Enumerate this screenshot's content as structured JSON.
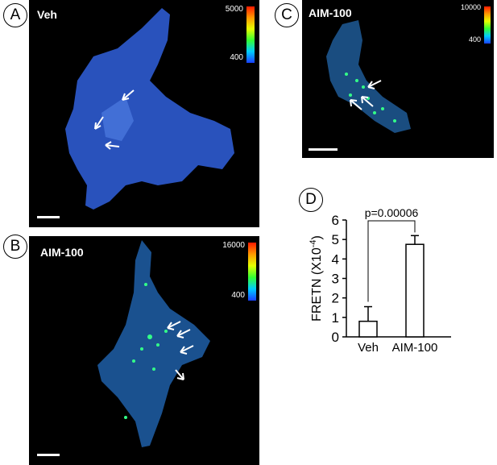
{
  "panels": {
    "a": {
      "letter": "A",
      "condition": "Veh",
      "colorbar_max": "5000",
      "colorbar_min": "400"
    },
    "b": {
      "letter": "B",
      "condition": "AIM-100",
      "colorbar_max": "16000",
      "colorbar_min": "400"
    },
    "c": {
      "letter": "C",
      "condition": "AIM-100",
      "colorbar_max": "10000",
      "colorbar_min": "400"
    },
    "d": {
      "letter": "D"
    }
  },
  "chart_data": {
    "type": "bar",
    "categories": [
      "Veh",
      "AIM-100"
    ],
    "values": [
      0.8,
      4.75
    ],
    "errors": [
      0.75,
      0.45
    ],
    "ylabel": "FRETN (X10",
    "ylabel_exp": "-4",
    "ylabel_close": ")",
    "ylim": [
      0,
      6
    ],
    "yticks": [
      "0",
      "1",
      "2",
      "3",
      "4",
      "5",
      "6"
    ],
    "annotation": "p=0.00006",
    "grid": false,
    "bar_fill": "#ffffff",
    "bar_stroke": "#000000"
  },
  "colors": {
    "cell_veh": "#2f5fd6",
    "cell_aim": "#1f6fb0",
    "puncta": "#33ff88",
    "arrow": "#ffffff"
  }
}
